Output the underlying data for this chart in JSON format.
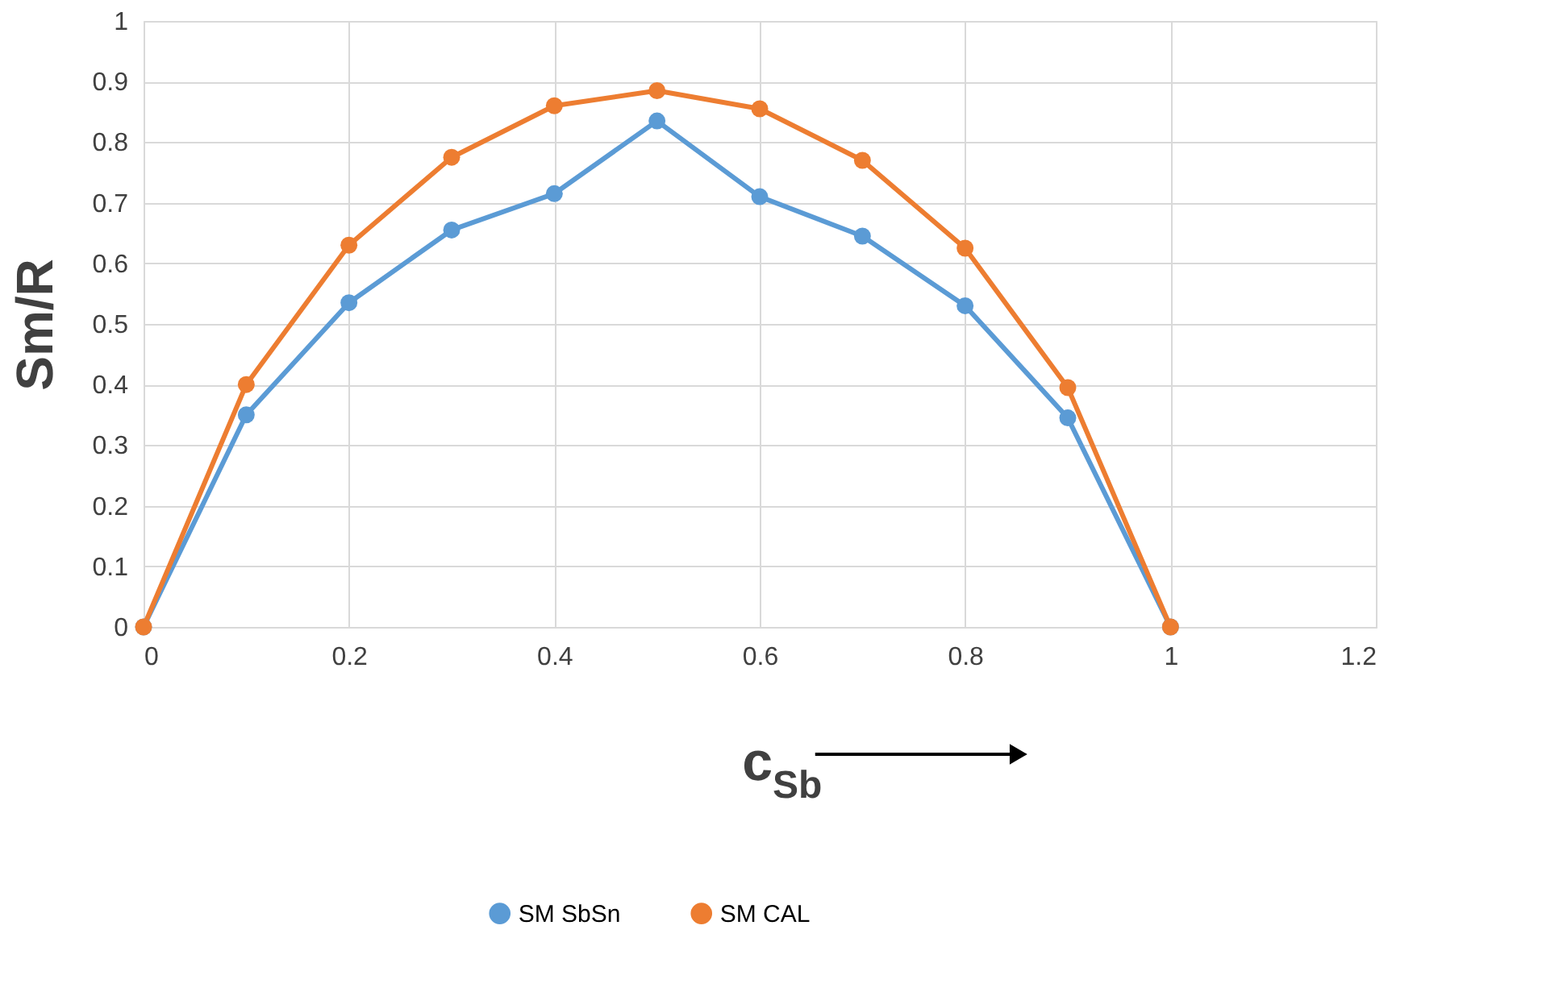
{
  "chart_data": {
    "type": "line",
    "xlabel": "c$_{Sb}$",
    "ylabel": "Sm/R",
    "x": [
      0,
      0.1,
      0.2,
      0.3,
      0.4,
      0.5,
      0.6,
      0.7,
      0.8,
      0.9,
      1
    ],
    "series": [
      {
        "name": "SM SbSn",
        "color": "#5b9bd5",
        "values": [
          0,
          0.35,
          0.535,
          0.655,
          0.715,
          0.835,
          0.71,
          0.645,
          0.53,
          0.345,
          0
        ]
      },
      {
        "name": "SM CAL",
        "color": "#ed7d31",
        "values": [
          0,
          0.4,
          0.63,
          0.775,
          0.86,
          0.885,
          0.855,
          0.77,
          0.625,
          0.395,
          0
        ]
      }
    ],
    "xlim": [
      0,
      1.2
    ],
    "xticks": [
      0,
      0.2,
      0.4,
      0.6,
      0.8,
      1,
      1.2
    ],
    "ylim": [
      0,
      1
    ],
    "yticks": [
      0,
      0.1,
      0.2,
      0.3,
      0.4,
      0.5,
      0.6,
      0.7,
      0.8,
      0.9,
      1
    ],
    "grid": true,
    "legend": "bottom",
    "marker": "circle",
    "line_style": "solid"
  }
}
